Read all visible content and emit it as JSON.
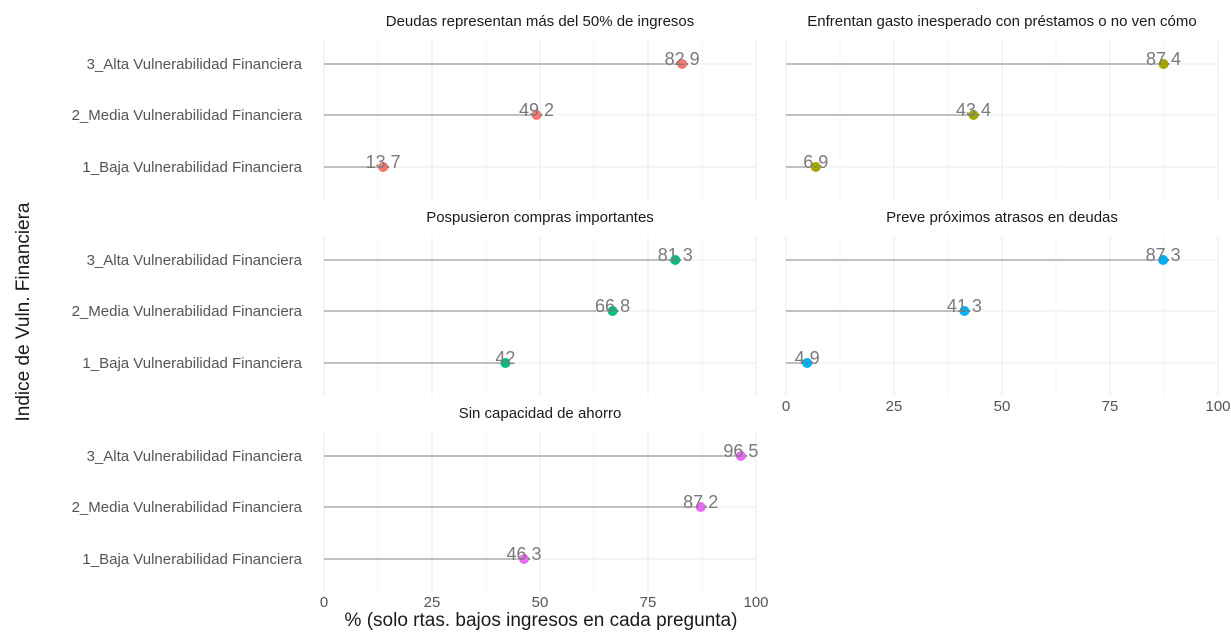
{
  "chart_data": {
    "type": "lollipop",
    "xlabel": "% (solo rtas. bajos ingresos en cada pregunta)",
    "ylabel": "Indice de Vuln. Financiera",
    "xlim": [
      0,
      100
    ],
    "x_ticks": [
      "0",
      "25",
      "50",
      "75",
      "100"
    ],
    "grid": true,
    "categories": [
      "3_Alta Vulnerabilidad Financiera",
      "2_Media Vulnerabilidad Financiera",
      "1_Baja Vulnerabilidad Financiera"
    ],
    "panels": [
      {
        "title": "Deudas representan más del 50% de ingresos",
        "color": "#f8766d",
        "values": [
          82.9,
          49.2,
          13.7
        ],
        "labels": [
          "82.9",
          "49.2",
          "13.7"
        ]
      },
      {
        "title": "Enfrentan gasto inesperado con préstamos o no ven cómo",
        "color": "#a3a500",
        "values": [
          87.4,
          43.4,
          6.9
        ],
        "labels": [
          "87.4",
          "43.4",
          "6.9"
        ]
      },
      {
        "title": "Pospusieron compras importantes",
        "color": "#00bf7d",
        "values": [
          81.3,
          66.8,
          42
        ],
        "labels": [
          "81.3",
          "66.8",
          "42"
        ]
      },
      {
        "title": "Preve próximos atrasos en deudas",
        "color": "#00b0f6",
        "values": [
          87.3,
          41.3,
          4.9
        ],
        "labels": [
          "87.3",
          "41.3",
          "4.9"
        ]
      },
      {
        "title": "Sin capacidad de ahorro",
        "color": "#e76bf3",
        "values": [
          96.5,
          87.2,
          46.3
        ],
        "labels": [
          "96.5",
          "87.2",
          "46.3"
        ]
      }
    ]
  }
}
